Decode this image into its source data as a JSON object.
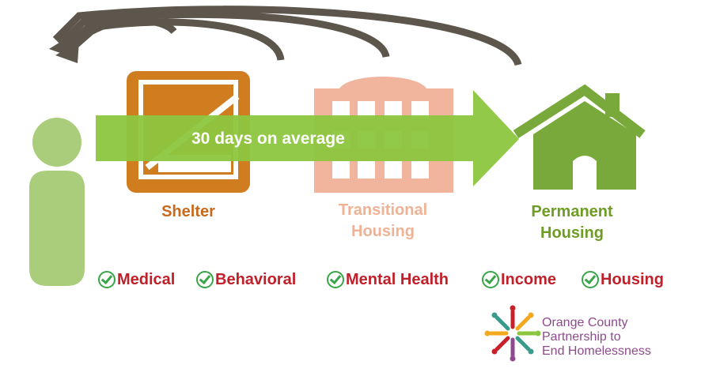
{
  "flow_arrow": {
    "label": "30 days on average"
  },
  "stages": [
    {
      "label": "Shelter",
      "icon": "shelter-icon",
      "color": "#d07d20"
    },
    {
      "label": "Transitional\nHousing",
      "icon": "building-icon",
      "color": "#f1b49c"
    },
    {
      "label": "Permanent\nHousing",
      "icon": "house-icon",
      "color": "#79a93a"
    }
  ],
  "services": [
    {
      "label": "Medical"
    },
    {
      "label": "Behavioral"
    },
    {
      "label": "Mental Health"
    },
    {
      "label": "Income"
    },
    {
      "label": "Housing"
    }
  ],
  "organization": {
    "name": "Orange County\nPartnership to\nEnd Homelessness"
  },
  "colors": {
    "person": "#a9cd7a",
    "flow_arrow": "#8cc63f",
    "return_arrows": "#5c564c",
    "service_text": "#c0202a",
    "check": "#3aa548"
  }
}
